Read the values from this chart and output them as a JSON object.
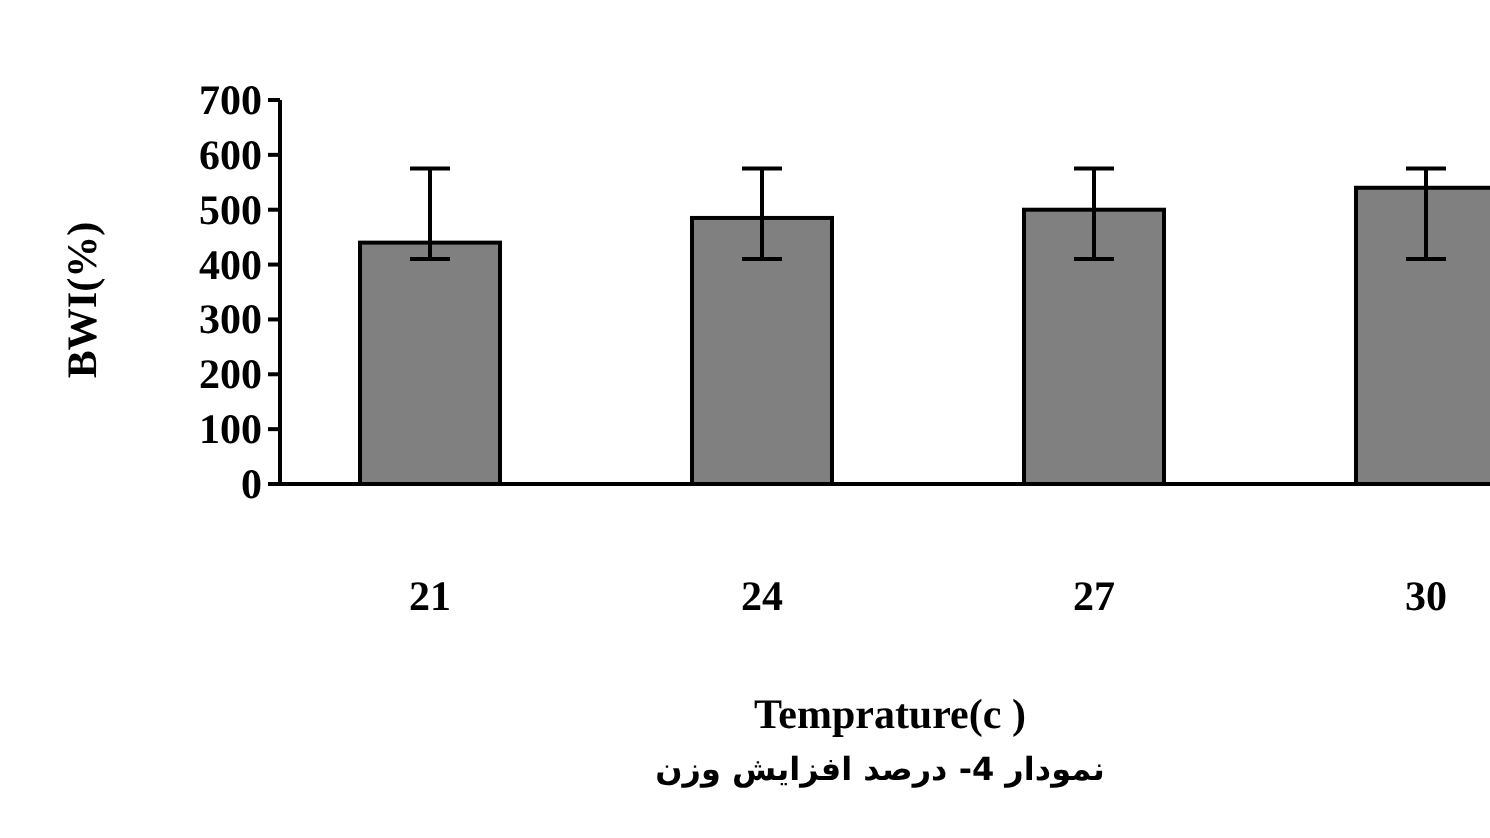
{
  "chart_data": {
    "type": "bar",
    "xlabel": "Temprature(c )",
    "ylabel": "BWI(%)",
    "annotations": [
      "نمودار 4- درصد افزایش وزن"
    ],
    "categories": [
      "21",
      "24",
      "27",
      "30"
    ],
    "values": [
      440,
      485,
      500,
      540
    ],
    "color": "#808080",
    "errors": [
      [
        410,
        575
      ],
      [
        410,
        575
      ],
      [
        410,
        575
      ],
      [
        410,
        575
      ]
    ],
    "ylim": [
      0,
      700
    ],
    "yticks": [
      0,
      100,
      200,
      300,
      400,
      500,
      600,
      700
    ]
  }
}
